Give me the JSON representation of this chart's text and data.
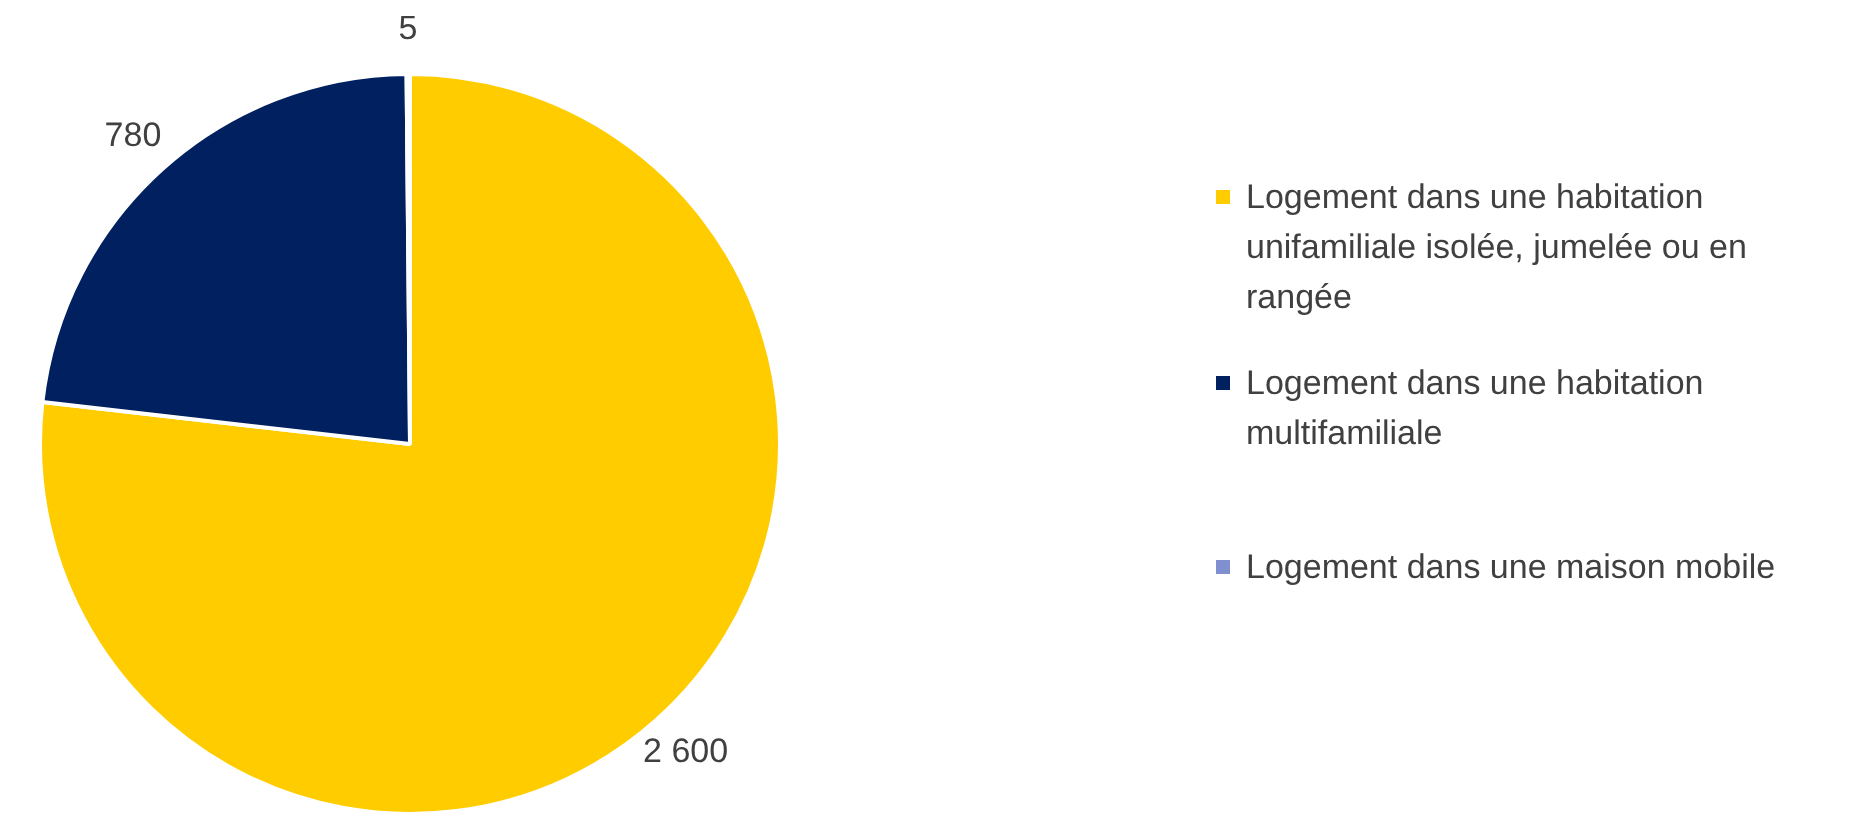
{
  "chart_data": {
    "type": "pie",
    "categories": [
      "Logement dans une habitation unifamiliale isolée, jumelée ou en rangée",
      "Logement dans une habitation multifamiliale",
      "Logement dans une maison mobile"
    ],
    "values": [
      2600,
      780,
      5
    ],
    "colors": [
      "#ffcc00",
      "#002060",
      "#7f8fcf"
    ],
    "value_labels": [
      "2 600",
      "780",
      "5"
    ],
    "legend": "right"
  }
}
